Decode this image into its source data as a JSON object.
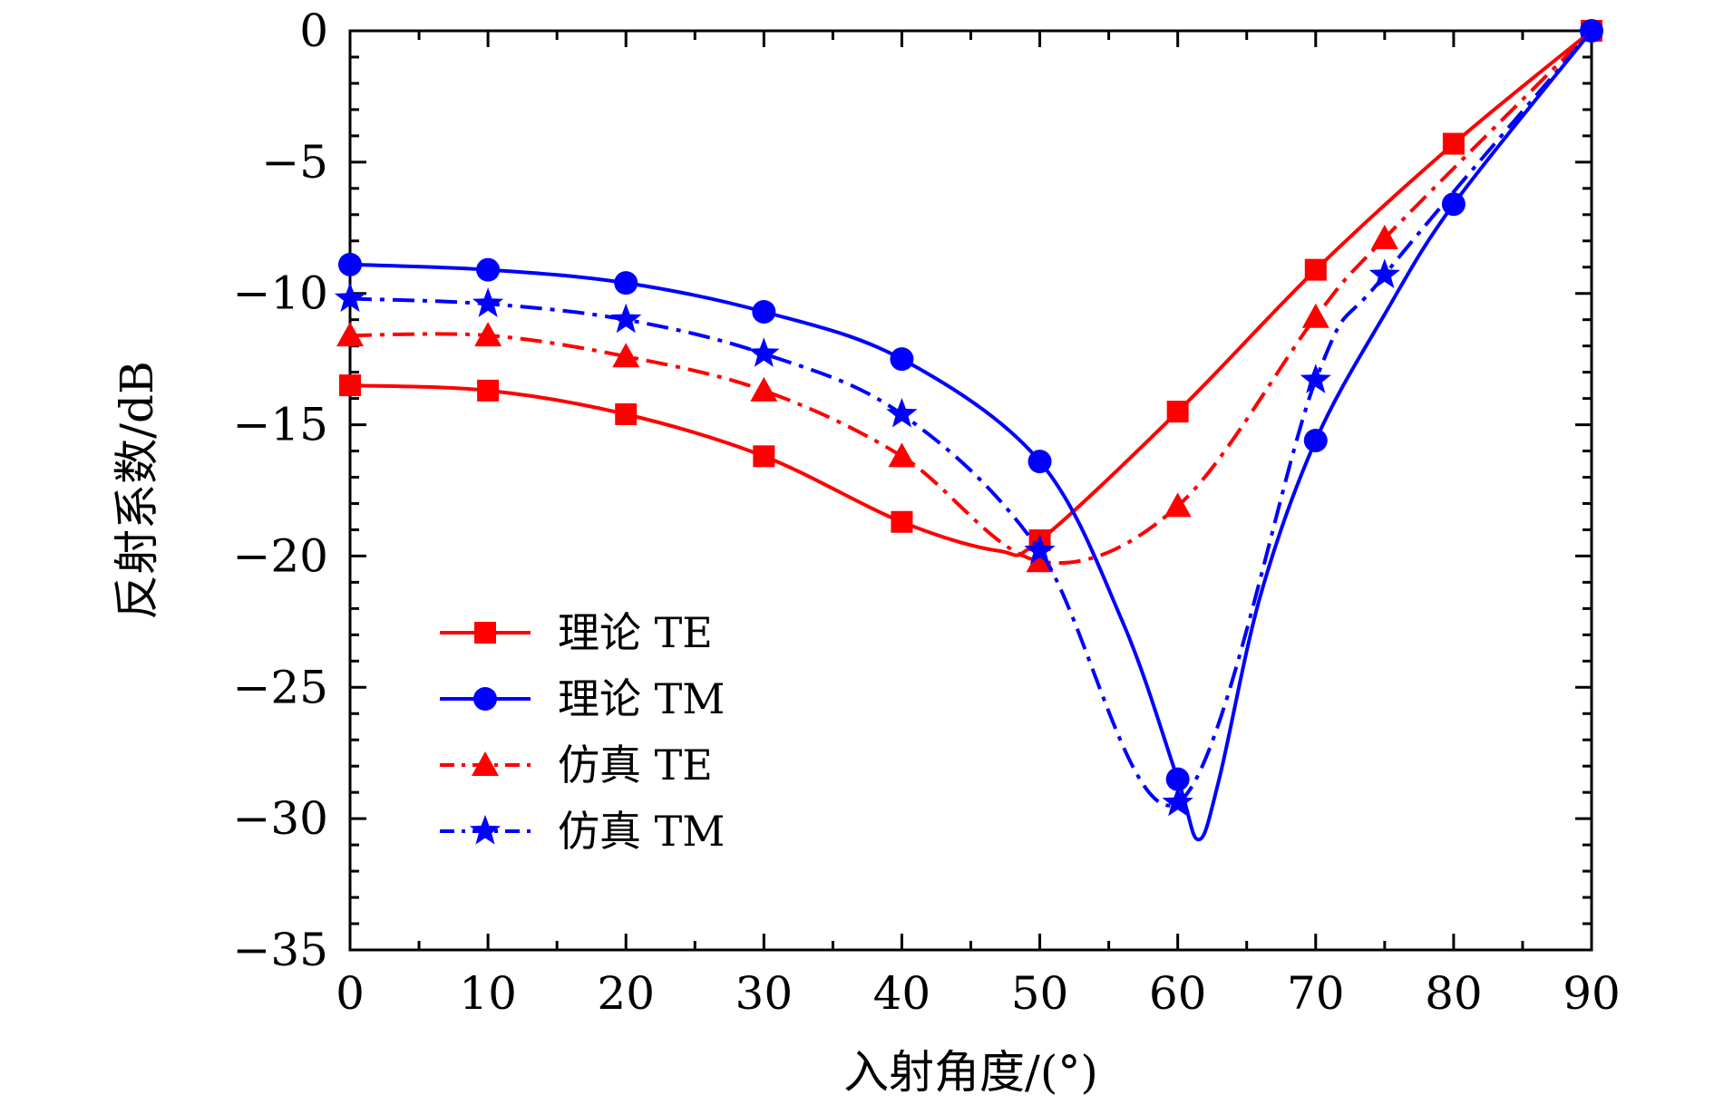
{
  "chart_data": {
    "type": "line",
    "xlabel": "入射角度/(°)",
    "ylabel": "反射系数/dB",
    "xlim": [
      0,
      90
    ],
    "ylim": [
      -35,
      0
    ],
    "xticks": [
      0,
      10,
      20,
      30,
      40,
      50,
      60,
      70,
      80,
      90
    ],
    "yticks": [
      0,
      -5,
      -10,
      -15,
      -20,
      -25,
      -30,
      -35
    ],
    "ytick_labels": [
      "0",
      "−5",
      "−10",
      "−15",
      "−20",
      "−25",
      "−30",
      "−35"
    ],
    "grid": false,
    "legend_position": "lower-left",
    "series": [
      {
        "name": "理论 TE",
        "color": "#ff0000",
        "line_style": "solid",
        "marker": "square",
        "markers": [
          [
            0,
            -13.5
          ],
          [
            10,
            -13.7
          ],
          [
            20,
            -14.6
          ],
          [
            30,
            -16.2
          ],
          [
            40,
            -18.7
          ],
          [
            50,
            -19.4
          ],
          [
            60,
            -14.5
          ],
          [
            70,
            -9.1
          ],
          [
            80,
            -4.3
          ],
          [
            90,
            0
          ]
        ],
        "curve": [
          [
            0,
            -13.5
          ],
          [
            10,
            -13.7
          ],
          [
            20,
            -14.6
          ],
          [
            30,
            -16.2
          ],
          [
            40,
            -18.7
          ],
          [
            47,
            -19.8
          ],
          [
            50,
            -19.4
          ],
          [
            60,
            -14.5
          ],
          [
            70,
            -9.1
          ],
          [
            80,
            -4.3
          ],
          [
            90,
            0
          ]
        ]
      },
      {
        "name": "理论 TM",
        "color": "#0000ff",
        "line_style": "solid",
        "marker": "circle",
        "markers": [
          [
            0,
            -8.9
          ],
          [
            10,
            -9.1
          ],
          [
            20,
            -9.6
          ],
          [
            30,
            -10.7
          ],
          [
            40,
            -12.5
          ],
          [
            50,
            -16.4
          ],
          [
            60,
            -28.5
          ],
          [
            70,
            -15.6
          ],
          [
            80,
            -6.6
          ],
          [
            90,
            0
          ]
        ],
        "curve": [
          [
            0,
            -8.9
          ],
          [
            10,
            -9.1
          ],
          [
            20,
            -9.6
          ],
          [
            30,
            -10.7
          ],
          [
            40,
            -12.5
          ],
          [
            50,
            -16.4
          ],
          [
            56,
            -22.5
          ],
          [
            60,
            -28.5
          ],
          [
            61.5,
            -30.8
          ],
          [
            63,
            -28.5
          ],
          [
            66,
            -21.5
          ],
          [
            70,
            -15.6
          ],
          [
            75,
            -10.8
          ],
          [
            80,
            -6.6
          ],
          [
            90,
            0
          ]
        ]
      },
      {
        "name": "仿真 TE",
        "color": "#ff0000",
        "line_style": "dashdot",
        "marker": "triangle",
        "markers": [
          [
            0,
            -11.6
          ],
          [
            10,
            -11.6
          ],
          [
            20,
            -12.4
          ],
          [
            30,
            -13.7
          ],
          [
            40,
            -16.2
          ],
          [
            50,
            -20.2
          ],
          [
            60,
            -18.1
          ],
          [
            70,
            -10.9
          ],
          [
            75,
            -7.9
          ]
        ],
        "curve": [
          [
            0,
            -11.6
          ],
          [
            10,
            -11.6
          ],
          [
            20,
            -12.4
          ],
          [
            30,
            -13.7
          ],
          [
            40,
            -16.2
          ],
          [
            50,
            -20.2
          ],
          [
            60,
            -18.1
          ],
          [
            70,
            -10.9
          ],
          [
            75,
            -7.9
          ],
          [
            90,
            0
          ]
        ]
      },
      {
        "name": "仿真 TM",
        "color": "#0000ff",
        "line_style": "dashdot",
        "marker": "star",
        "markers": [
          [
            0,
            -10.2
          ],
          [
            10,
            -10.4
          ],
          [
            20,
            -11.0
          ],
          [
            30,
            -12.3
          ],
          [
            40,
            -14.6
          ],
          [
            50,
            -19.8
          ],
          [
            60,
            -29.4
          ],
          [
            70,
            -13.3
          ],
          [
            75,
            -9.3
          ]
        ],
        "curve": [
          [
            0,
            -10.2
          ],
          [
            10,
            -10.4
          ],
          [
            20,
            -11.0
          ],
          [
            30,
            -12.3
          ],
          [
            40,
            -14.6
          ],
          [
            50,
            -19.8
          ],
          [
            60,
            -29.4
          ],
          [
            70,
            -13.3
          ],
          [
            75,
            -9.3
          ],
          [
            90,
            0
          ]
        ]
      }
    ]
  }
}
